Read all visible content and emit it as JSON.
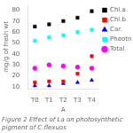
{
  "chart_data": {
    "type": "scatter",
    "categories": [
      "T0",
      "T1",
      "T2",
      "T3",
      "T4"
    ],
    "series": [
      {
        "name": "Chl.a",
        "color": "black",
        "marker": "square",
        "values": [
          65,
          67,
          70,
          73,
          79
        ]
      },
      {
        "name": "Chl.b",
        "color": "red",
        "marker": "square",
        "values": [
          14,
          15,
          15,
          22,
          38
        ]
      },
      {
        "name": "Car.",
        "color": "blue",
        "marker": "triangle",
        "values": [
          11,
          11,
          13,
          14,
          16
        ]
      },
      {
        "name": "Pheotn",
        "color": "cyan",
        "marker": "square",
        "values": [
          52,
          55,
          57,
          60,
          62
        ]
      },
      {
        "name": "Total",
        "color": "magenta",
        "marker": "circle",
        "values": [
          27,
          30,
          29,
          28,
          27
        ]
      }
    ],
    "xlabel": "A",
    "ylabel": "mg/g of fresh wt",
    "subtitle": "Figure 2 Effect of La on photosynthetic pigment of C.flexuos",
    "ylim": [
      8,
      85
    ],
    "yticks": [
      10,
      20,
      30,
      40,
      50,
      60,
      70,
      80
    ],
    "grid": false,
    "legend": "right"
  }
}
